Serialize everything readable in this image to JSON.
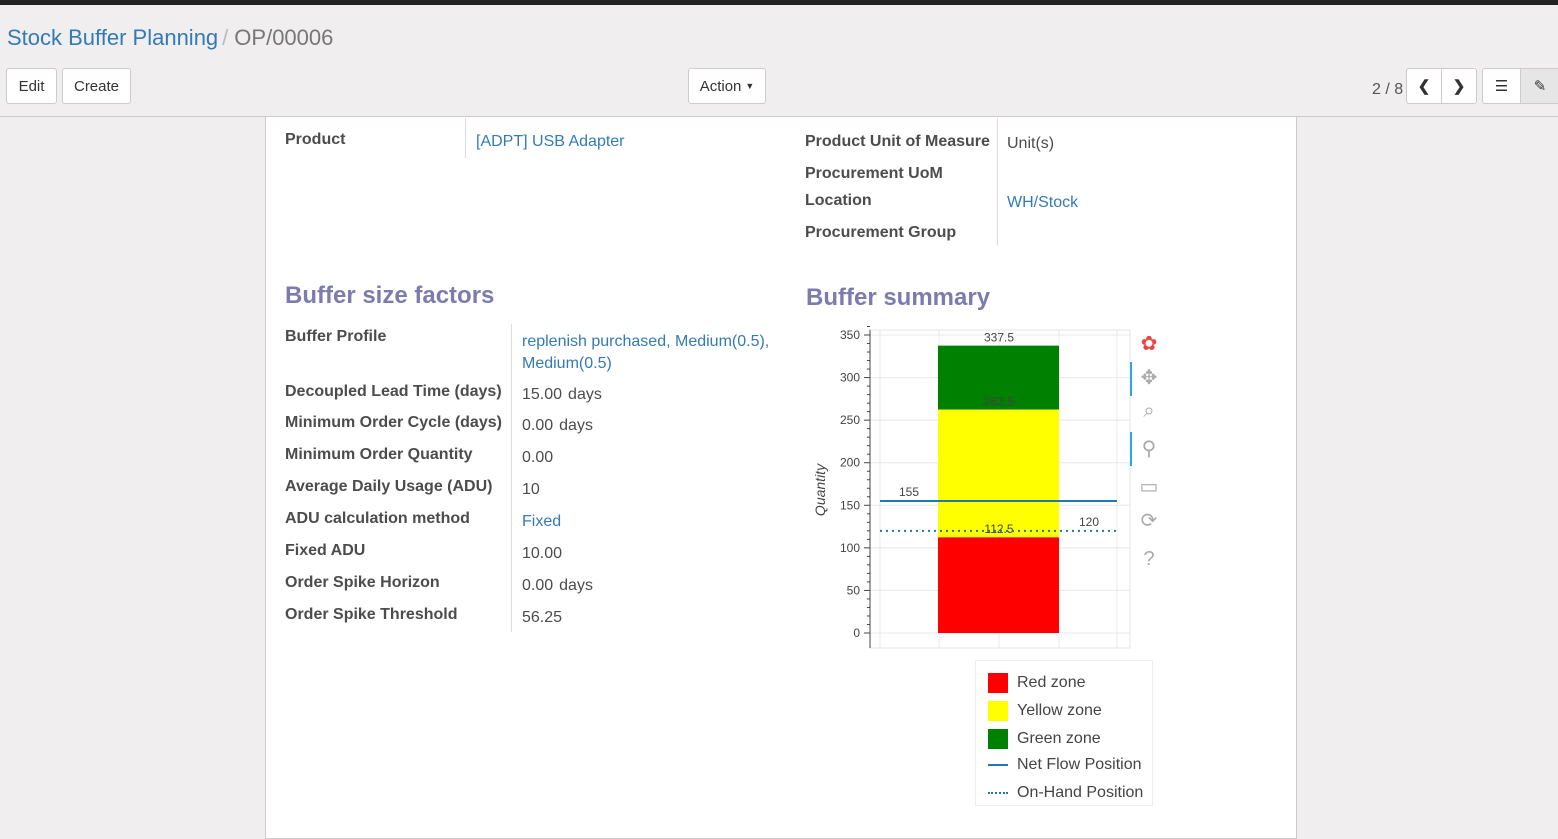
{
  "breadcrumb": {
    "parent": "Stock Buffer Planning",
    "separator": "/",
    "current": "OP/00006"
  },
  "toolbar": {
    "edit": "Edit",
    "create": "Create",
    "action": "Action",
    "pager": "2 / 8"
  },
  "form": {
    "product_label": "Product",
    "product_value": "[ADPT] USB Adapter",
    "uom_label": "Product Unit of Measure",
    "uom_value": "Unit(s)",
    "proc_uom_label": "Procurement UoM",
    "location_label": "Location",
    "location_value": "WH/Stock",
    "proc_group_label": "Procurement Group"
  },
  "buffer_factors": {
    "title": "Buffer size factors",
    "rows": [
      {
        "label": "Buffer Profile",
        "value": "replenish purchased, Medium(0.5), Medium(0.5)",
        "link": true
      },
      {
        "label": "Decoupled Lead Time (days)",
        "value": "15.00",
        "unit": "days"
      },
      {
        "label": "Minimum Order Cycle (days)",
        "value": "0.00",
        "unit": "days"
      },
      {
        "label": "Minimum Order Quantity",
        "value": "0.00"
      },
      {
        "label": "Average Daily Usage (ADU)",
        "value": "10"
      },
      {
        "label": "ADU calculation method",
        "value": "Fixed",
        "link": true
      },
      {
        "label": "Fixed ADU",
        "value": "10.00"
      },
      {
        "label": "Order Spike Horizon",
        "value": "0.00",
        "unit": "days"
      },
      {
        "label": "Order Spike Threshold",
        "value": "56.25"
      }
    ]
  },
  "buffer_summary": {
    "title": "Buffer summary"
  },
  "chart_data": {
    "type": "bar",
    "stacked": true,
    "ylabel": "Quantity",
    "ylim": [
      0,
      350
    ],
    "yticks": [
      0,
      50,
      100,
      150,
      200,
      250,
      300,
      350
    ],
    "grid": true,
    "series": [
      {
        "name": "Red zone",
        "from": 0,
        "to": 112.5,
        "color": "#ff0000",
        "label": "112.5"
      },
      {
        "name": "Yellow zone",
        "from": 112.5,
        "to": 262.5,
        "color": "#ffff00",
        "label": "262.5"
      },
      {
        "name": "Green zone",
        "from": 262.5,
        "to": 337.5,
        "color": "#008000",
        "label": "337.5"
      }
    ],
    "lines": [
      {
        "name": "Net Flow Position",
        "value": 155,
        "label": "155",
        "style": "solid",
        "color": "#1f77b4"
      },
      {
        "name": "On-Hand Position",
        "value": 120,
        "label": "120",
        "style": "dotted",
        "color": "#1f77b4"
      }
    ],
    "legend": "bottom-right"
  }
}
